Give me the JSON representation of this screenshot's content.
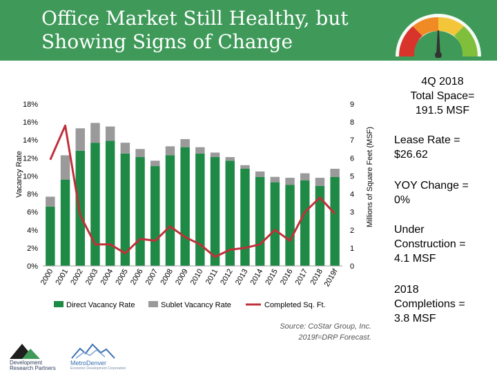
{
  "header": {
    "title_line1": "Office Market Still Healthy, but",
    "title_line2": "Showing Signs of Change",
    "gauge_icon": "gauge-icon"
  },
  "colors": {
    "header_bg": "#3f9a5a",
    "direct": "#1e8a45",
    "sublet": "#9a9a9a",
    "completed": "#c0303a"
  },
  "chart_data": {
    "type": "bar",
    "stacked": true,
    "categories": [
      "2000",
      "2001",
      "2002",
      "2003",
      "2004",
      "2005",
      "2006",
      "2007",
      "2008",
      "2009",
      "2010",
      "2011",
      "2012",
      "2013",
      "2014",
      "2015",
      "2016",
      "2017",
      "2018",
      "2019f"
    ],
    "series": [
      {
        "name": "Direct Vacancy Rate",
        "axis": "left",
        "values": [
          6.6,
          9.6,
          12.8,
          13.7,
          13.9,
          12.5,
          12.1,
          11.1,
          12.3,
          13.2,
          12.5,
          12.1,
          11.7,
          10.8,
          9.9,
          9.3,
          9.0,
          9.5,
          8.9,
          9.9
        ]
      },
      {
        "name": "Sublet Vacancy Rate",
        "axis": "left",
        "values": [
          1.1,
          2.7,
          2.5,
          2.2,
          1.6,
          1.2,
          0.9,
          0.6,
          1.0,
          0.9,
          0.7,
          0.5,
          0.4,
          0.4,
          0.6,
          0.6,
          0.8,
          0.8,
          0.9,
          0.9
        ]
      },
      {
        "name": "Completed Sq. Ft.",
        "axis": "right",
        "type": "line",
        "values": [
          5.9,
          7.8,
          2.8,
          1.2,
          1.2,
          0.7,
          1.5,
          1.4,
          2.2,
          1.6,
          1.2,
          0.5,
          0.9,
          1.0,
          1.2,
          2.0,
          1.4,
          3.0,
          3.8,
          2.9
        ]
      }
    ],
    "ylabel": "Vacancy Rate",
    "y2label": "Millions of Square Feet (MSF)",
    "ylim": [
      0,
      18
    ],
    "y2lim": [
      0,
      9
    ],
    "yticks": [
      "0%",
      "2%",
      "4%",
      "6%",
      "8%",
      "10%",
      "12%",
      "14%",
      "16%",
      "18%"
    ],
    "y2ticks": [
      "0",
      "1",
      "2",
      "3",
      "4",
      "5",
      "6",
      "7",
      "8",
      "9"
    ],
    "grid": false,
    "legend_position": "bottom"
  },
  "source": {
    "line1": "Source: CoStar Group, Inc.",
    "line2": "2019f=DRP Forecast."
  },
  "stats": {
    "quarter_line1": "4Q 2018",
    "quarter_line2": "Total Space=",
    "quarter_line3": "191.5 MSF",
    "lease_line1": "Lease Rate =",
    "lease_line2": "$26.62",
    "yoy_line1": "YOY Change =",
    "yoy_line2": "0%",
    "uc_line1": "Under",
    "uc_line2": "Construction =",
    "uc_line3": "4.1 MSF",
    "comp_line1": "2018",
    "comp_line2": "Completions =",
    "comp_line3": "3.8 MSF"
  },
  "logos": {
    "drp_line1": "Development",
    "drp_line2": "Research Partners",
    "metro_name": "MetroDenver",
    "metro_tagline": "Economic Development Corporation"
  }
}
